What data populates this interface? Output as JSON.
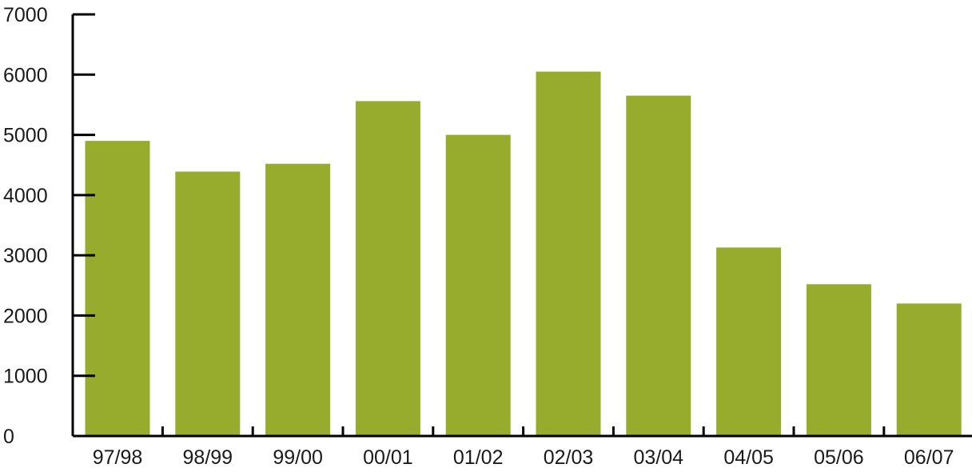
{
  "chart_data": {
    "type": "bar",
    "title": "",
    "xlabel": "",
    "ylabel": "",
    "categories": [
      "97/98",
      "98/99",
      "99/00",
      "00/01",
      "01/02",
      "02/03",
      "03/04",
      "04/05",
      "05/06",
      "06/07"
    ],
    "values": [
      4900,
      4390,
      4520,
      5560,
      5000,
      6050,
      5650,
      3130,
      2520,
      2200
    ],
    "ylim": [
      0,
      7000
    ],
    "yticks": [
      "0",
      "1000",
      "2000",
      "3000",
      "4000",
      "5000",
      "6000",
      "7000"
    ],
    "grid": false,
    "legend": "none",
    "bar_color": "#97ab2d",
    "axis_color": "#000000"
  }
}
